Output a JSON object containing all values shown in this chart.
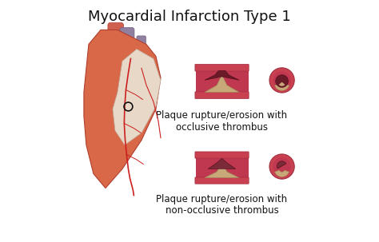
{
  "title": "Myocardial Infarction Type 1",
  "title_fontsize": 13,
  "title_color": "#111111",
  "bg_color": "#ffffff",
  "label1_line1": "Plaque rupture/erosion with",
  "label1_line2": "occlusive thrombus",
  "label2_line1": "Plaque rupture/erosion with",
  "label2_line2": "non-occlusive thrombus",
  "label_fontsize": 8.5,
  "vessel_wall_color": "#C94050",
  "plaque_color": "#C8A878",
  "thrombus_color_occlusive": "#6B1A28",
  "thrombus_color_non": "#7B2A38"
}
